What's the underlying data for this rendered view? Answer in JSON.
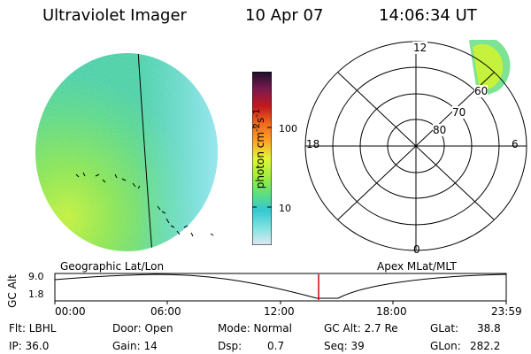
{
  "header": {
    "instrument": "Ultraviolet Imager",
    "date": "10 Apr 07",
    "time": "14:06:34 UT"
  },
  "colorbar": {
    "unit_label": "photon cm",
    "unit_sup1": "-2",
    "unit_mid": "s",
    "unit_sup2": "-1",
    "ticks": [
      "100",
      "10"
    ],
    "scale": "log",
    "colors": [
      "#dfe9f1",
      "#7fe3e0",
      "#35c7d2",
      "#5fe07a",
      "#a4ef3c",
      "#e2f43a",
      "#fba22a",
      "#f06a1c",
      "#c11a1d",
      "#7a1a4f",
      "#1b0f29"
    ]
  },
  "polar": {
    "mlt_labels": {
      "top": "12",
      "left": "18",
      "right": "6",
      "bottom": "0"
    },
    "lat_labels": [
      "60",
      "70",
      "80"
    ],
    "projection_label": "Apex MLat/MLT"
  },
  "imager": {
    "projection_label": "Geographic Lat/Lon"
  },
  "timeplot": {
    "ylabel": "GC Alt",
    "ytick_top": "9.0",
    "ytick_bottom": "1.8",
    "xticks": [
      "00:00",
      "06:00",
      "12:00",
      "18:00",
      "23:59"
    ],
    "cursor_time": "14:06",
    "cursor_color": "#cc0000"
  },
  "status": {
    "flt": "Flt: LBHL",
    "ip": "IP: 36.0",
    "door": "Door: Open",
    "gain": "Gain: 14",
    "mode": "Mode: Normal",
    "dsp": "Dsp:",
    "dsp_value": "0.7",
    "gcalt": "GC Alt: 2.7 Re",
    "seq": "Seq: 39",
    "glat_label": "GLat:",
    "glat_value": "38.8",
    "glon_label": "GLon:",
    "glon_value": "282.2"
  }
}
